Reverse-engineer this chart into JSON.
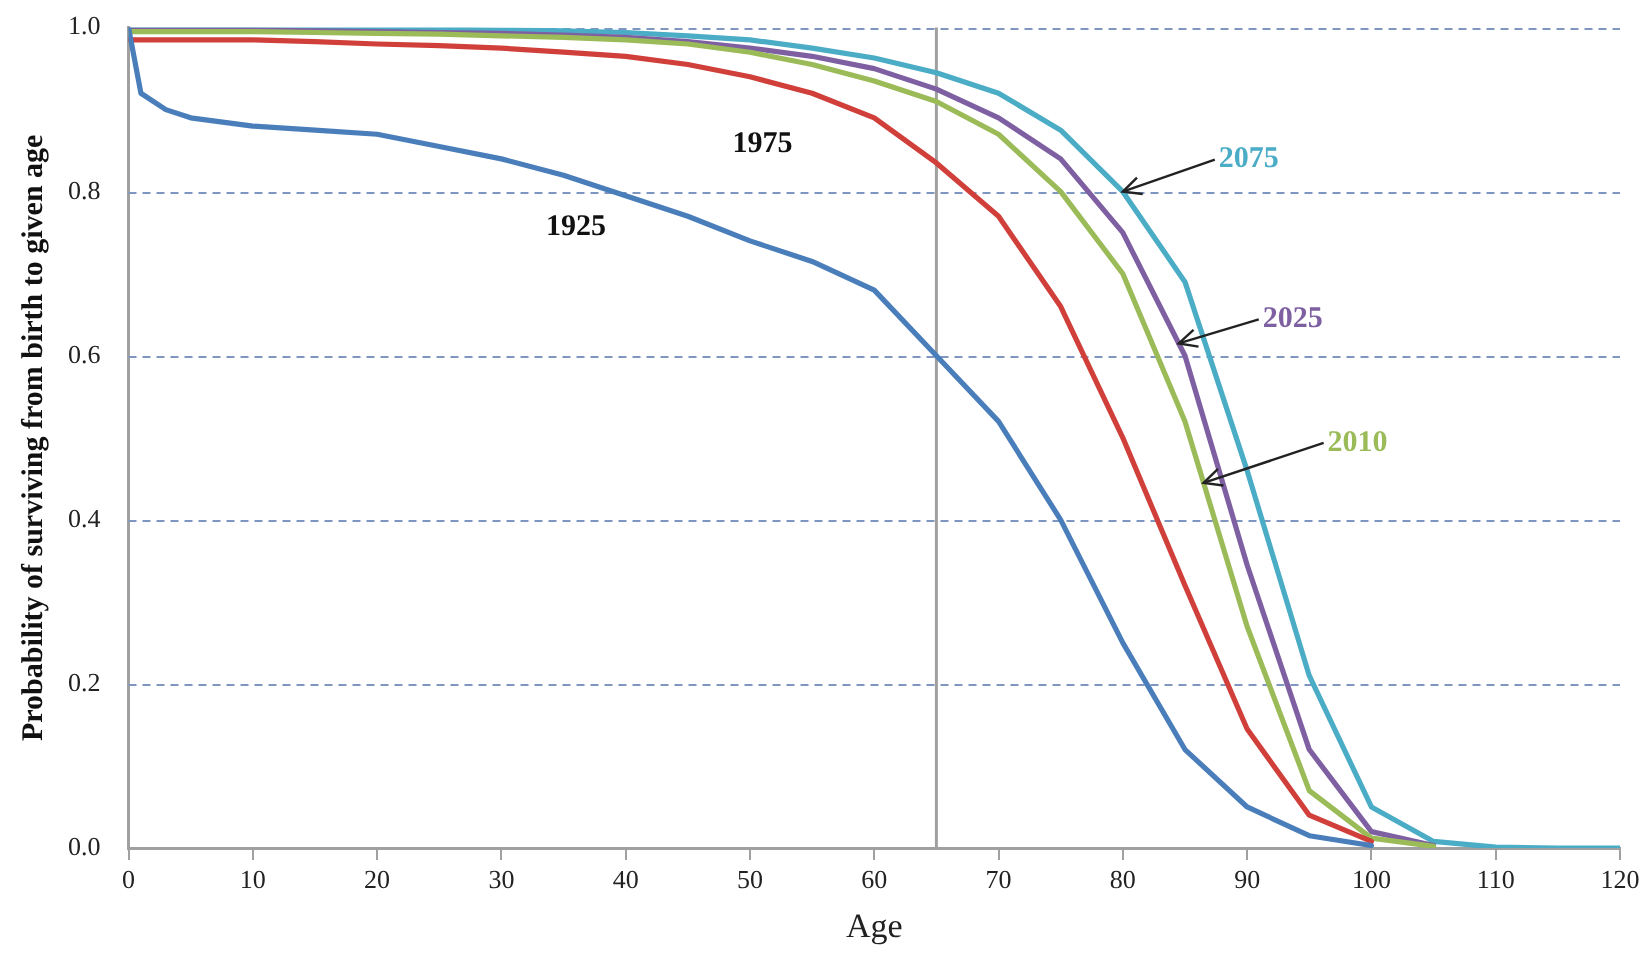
{
  "chart_data": {
    "type": "line",
    "xlabel": "Age",
    "ylabel": "Probability of surviving from birth to given age",
    "x": [
      0,
      1,
      3,
      5,
      10,
      15,
      20,
      25,
      30,
      35,
      40,
      45,
      50,
      55,
      60,
      65,
      70,
      75,
      80,
      85,
      90,
      95,
      100,
      105,
      110,
      115,
      120
    ],
    "series": [
      {
        "name": "1925",
        "color": "#4a7ebb",
        "values": [
          1.0,
          0.92,
          0.9,
          0.89,
          0.88,
          0.875,
          0.87,
          0.855,
          0.84,
          0.82,
          0.795,
          0.77,
          0.74,
          0.715,
          0.68,
          0.6,
          0.52,
          0.4,
          0.25,
          0.12,
          0.05,
          0.015,
          0.003,
          null,
          null,
          null,
          null
        ]
      },
      {
        "name": "1975",
        "color": "#d03f3a",
        "values": [
          0.985,
          0.985,
          0.985,
          0.985,
          0.985,
          0.983,
          0.98,
          0.978,
          0.975,
          0.97,
          0.965,
          0.955,
          0.94,
          0.92,
          0.89,
          0.835,
          0.77,
          0.66,
          0.5,
          0.32,
          0.145,
          0.04,
          0.008,
          null,
          null,
          null,
          null
        ]
      },
      {
        "name": "2010",
        "color": "#9bbb59",
        "values": [
          0.995,
          0.995,
          0.995,
          0.995,
          0.995,
          0.994,
          0.993,
          0.992,
          0.99,
          0.988,
          0.985,
          0.98,
          0.97,
          0.955,
          0.935,
          0.91,
          0.87,
          0.8,
          0.7,
          0.52,
          0.27,
          0.07,
          0.012,
          0.002,
          null,
          null,
          null
        ]
      },
      {
        "name": "2025",
        "color": "#7e60a2",
        "values": [
          0.997,
          0.997,
          0.997,
          0.997,
          0.997,
          0.996,
          0.995,
          0.994,
          0.993,
          0.991,
          0.988,
          0.983,
          0.975,
          0.965,
          0.95,
          0.925,
          0.89,
          0.84,
          0.75,
          0.6,
          0.345,
          0.12,
          0.02,
          0.003,
          null,
          null,
          null
        ]
      },
      {
        "name": "2075",
        "color": "#4bacc6",
        "values": [
          0.999,
          0.999,
          0.999,
          0.999,
          0.999,
          0.999,
          0.998,
          0.998,
          0.997,
          0.996,
          0.994,
          0.99,
          0.985,
          0.975,
          0.963,
          0.945,
          0.92,
          0.875,
          0.8,
          0.69,
          0.46,
          0.21,
          0.05,
          0.008,
          0.001,
          0,
          0
        ]
      }
    ],
    "xlim": [
      0,
      120
    ],
    "xticks": [
      0,
      10,
      20,
      30,
      40,
      50,
      60,
      70,
      80,
      90,
      100,
      110,
      120
    ],
    "ylim": [
      0,
      1
    ],
    "yticks": [
      {
        "value": 0,
        "label": "0.0"
      },
      {
        "value": 0.2,
        "label": "0.2"
      },
      {
        "value": 0.4,
        "label": "0.4"
      },
      {
        "value": 0.6,
        "label": "0.6"
      },
      {
        "value": 0.8,
        "label": "0.8"
      },
      {
        "value": 1,
        "label": "1.0"
      }
    ],
    "ref_lines": [
      {
        "axis": "x",
        "value": 65,
        "color": "#a0a0a0"
      }
    ],
    "grid": "y",
    "legend": false,
    "marker": "none",
    "line_style": "solid"
  }
}
